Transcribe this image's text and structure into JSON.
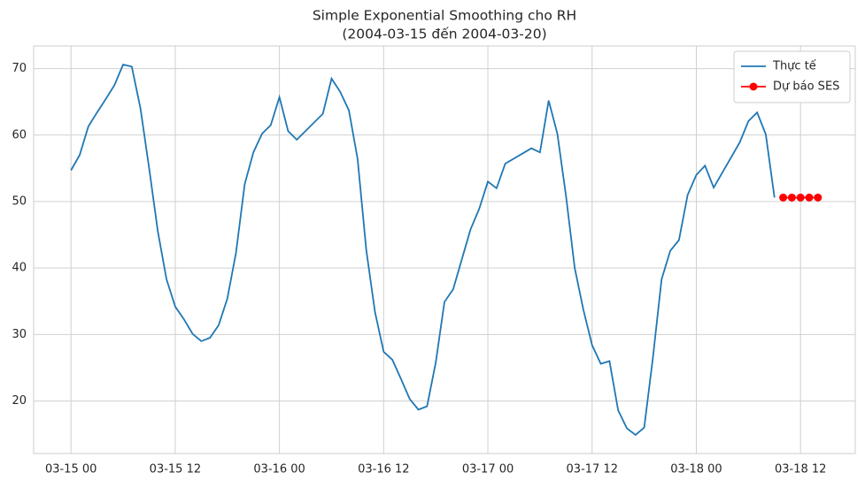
{
  "chart_data": {
    "type": "line",
    "title": "Simple Exponential Smoothing cho RH",
    "subtitle": "(2004-03-15 đến 2004-03-20)",
    "series": [
      {
        "name": "Thực tế",
        "color": "#1f77b4",
        "marker": false,
        "x": [
          "03-15 00",
          "03-15 01",
          "03-15 02",
          "03-15 03",
          "03-15 04",
          "03-15 05",
          "03-15 06",
          "03-15 07",
          "03-15 08",
          "03-15 09",
          "03-15 10",
          "03-15 11",
          "03-15 12",
          "03-15 13",
          "03-15 14",
          "03-15 15",
          "03-15 16",
          "03-15 17",
          "03-15 18",
          "03-15 19",
          "03-15 20",
          "03-15 21",
          "03-15 22",
          "03-15 23",
          "03-16 00",
          "03-16 01",
          "03-16 02",
          "03-16 05",
          "03-16 06",
          "03-16 07",
          "03-16 08",
          "03-16 09",
          "03-16 10",
          "03-16 11",
          "03-16 12",
          "03-16 13",
          "03-16 14",
          "03-16 15",
          "03-16 16",
          "03-16 17",
          "03-16 18",
          "03-16 19",
          "03-16 20",
          "03-16 21",
          "03-16 22",
          "03-16 23",
          "03-17 00",
          "03-17 01",
          "03-17 02",
          "03-17 05",
          "03-17 06",
          "03-17 07",
          "03-17 08",
          "03-17 09",
          "03-17 10",
          "03-17 11",
          "03-17 12",
          "03-17 13",
          "03-17 14",
          "03-17 15",
          "03-17 16",
          "03-17 17",
          "03-17 18",
          "03-17 19",
          "03-17 20",
          "03-17 21",
          "03-17 22",
          "03-17 23",
          "03-18 00",
          "03-18 01",
          "03-18 02",
          "03-18 05",
          "03-18 06",
          "03-18 07",
          "03-18 08",
          "03-18 09"
        ],
        "values": [
          54.7,
          57,
          61.3,
          63.4,
          65.4,
          67.5,
          70.6,
          70.3,
          64,
          55,
          45.5,
          38.3,
          34.2,
          32.3,
          30.1,
          29,
          29.5,
          31.4,
          35.4,
          42.3,
          52.6,
          57.4,
          60.2,
          61.5,
          65.7,
          60.6,
          59.3,
          63.2,
          68.5,
          66.5,
          63.7,
          56.4,
          42.7,
          33.4,
          27.4,
          26.2,
          23.3,
          20.3,
          18.7,
          19.2,
          25.8,
          34.9,
          36.8,
          41.3,
          45.8,
          48.9,
          53,
          52,
          55.7,
          58,
          57.4,
          65.2,
          60.2,
          50.8,
          40,
          33.7,
          28.4,
          25.6,
          26,
          18.6,
          15.9,
          14.9,
          16,
          26.5,
          38.3,
          42.6,
          44.2,
          51,
          54,
          55.4,
          52.1,
          58.9,
          62.1,
          63.4,
          60.1,
          50.6
        ]
      },
      {
        "name": "Dự báo SES",
        "color": "#ff0000",
        "marker": true,
        "x": [
          "03-18 10",
          "03-18 11",
          "03-18 12",
          "03-18 13",
          "03-18 14"
        ],
        "values": [
          50.6,
          50.6,
          50.6,
          50.6,
          50.6
        ]
      }
    ],
    "xticks": [
      "03-15 00",
      "03-15 12",
      "03-16 00",
      "03-16 12",
      "03-17 00",
      "03-17 12",
      "03-18 00",
      "03-18 12"
    ],
    "ylim": [
      12.1,
      73.4
    ],
    "yticks": [
      20,
      30,
      40,
      50,
      60,
      70
    ],
    "grid": true,
    "legend": "upper right"
  }
}
